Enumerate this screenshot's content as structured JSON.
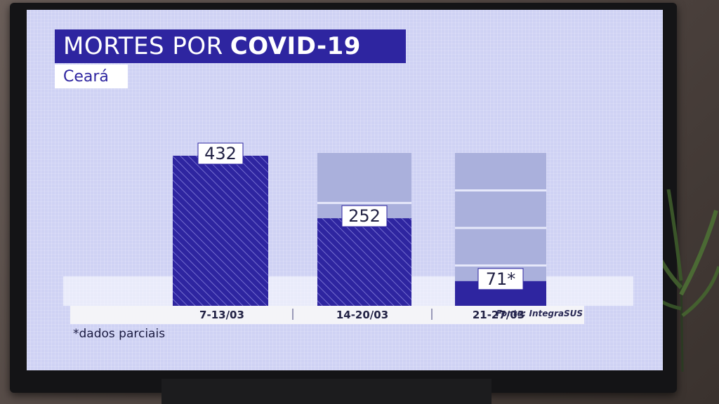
{
  "title_part1": "MORTES POR",
  "title_part2": "COVID-19",
  "subtitle": "Ceará",
  "source": "Fonte: IntegraSUS",
  "footnote": "*dados parciais",
  "colors": {
    "bar_fill": "#2e25a0",
    "placeholder": "#aab0dc",
    "title_bg": "#2e25a0"
  },
  "chart_data": {
    "type": "bar",
    "title": "MORTES POR COVID-19",
    "subtitle": "Ceará",
    "categories": [
      "7-13/03",
      "14-20/03",
      "21-27/03"
    ],
    "values": [
      432,
      252,
      71
    ],
    "value_labels": [
      "432",
      "252",
      "71*"
    ],
    "ylim": [
      0,
      432
    ],
    "grid": false,
    "legend": "none"
  }
}
